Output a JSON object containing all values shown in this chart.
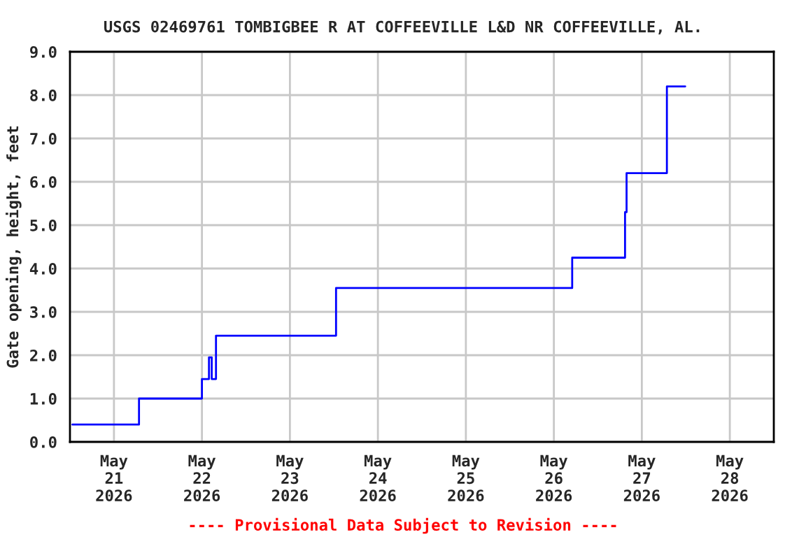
{
  "chart_data": {
    "type": "step",
    "title": "USGS 02469761 TOMBIGBEE R AT COFFEEVILLE L&D NR COFFEEVILLE, AL.",
    "ylabel": "Gate opening, height, feet",
    "x": [
      "2026-05-20T12:40",
      "2026-05-21T06:50",
      "2026-05-22T00:00",
      "2026-05-22T01:55",
      "2026-05-22T02:40",
      "2026-05-22T03:50",
      "2026-05-23T12:35",
      "2026-05-26T05:00",
      "2026-05-26T19:25",
      "2026-05-26T19:50",
      "2026-05-27T06:50",
      "2026-05-27T11:50"
    ],
    "series": [
      {
        "color": "#0000ff",
        "values": [
          0.4,
          1.0,
          1.45,
          1.95,
          1.45,
          2.45,
          3.55,
          4.25,
          5.3,
          6.2,
          8.2,
          8.2
        ]
      }
    ],
    "xlim": [
      "2026-05-20T12:00",
      "2026-05-28T12:00"
    ],
    "xticks": [
      {
        "value": "2026-05-21",
        "label": "May\n21\n2026"
      },
      {
        "value": "2026-05-22",
        "label": "May\n22\n2026"
      },
      {
        "value": "2026-05-23",
        "label": "May\n23\n2026"
      },
      {
        "value": "2026-05-24",
        "label": "May\n24\n2026"
      },
      {
        "value": "2026-05-25",
        "label": "May\n25\n2026"
      },
      {
        "value": "2026-05-26",
        "label": "May\n26\n2026"
      },
      {
        "value": "2026-05-27",
        "label": "May\n27\n2026"
      },
      {
        "value": "2026-05-28",
        "label": "May\n28\n2026"
      }
    ],
    "ylim": [
      0,
      9
    ],
    "yticks": [
      {
        "value": 0,
        "label": "0.0"
      },
      {
        "value": 1,
        "label": "1.0"
      },
      {
        "value": 2,
        "label": "2.0"
      },
      {
        "value": 3,
        "label": "3.0"
      },
      {
        "value": 4,
        "label": "4.0"
      },
      {
        "value": 5,
        "label": "5.0"
      },
      {
        "value": 6,
        "label": "6.0"
      },
      {
        "value": 7,
        "label": "7.0"
      },
      {
        "value": 8,
        "label": "8.0"
      },
      {
        "value": 9,
        "label": "9.0"
      }
    ],
    "grid": true,
    "annotations": [
      "---- Provisional Data Subject to Revision ----"
    ]
  }
}
